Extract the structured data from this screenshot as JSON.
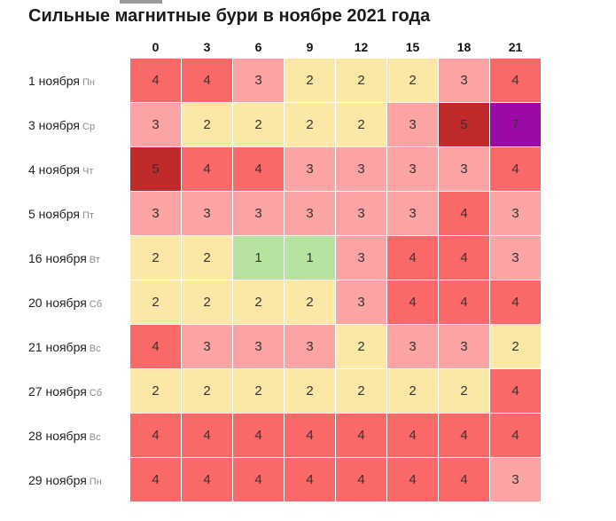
{
  "title": "Сильные магнитные бури в ноябре 2021 года",
  "level_colors": {
    "1": "#b6e3a0",
    "2": "#fbe8a6",
    "3": "#fca3a3",
    "4": "#fb6868",
    "5": "#c02a2a",
    "7": "#9b0aa6"
  },
  "hours": [
    "0",
    "3",
    "6",
    "9",
    "12",
    "15",
    "18",
    "21"
  ],
  "rows": [
    {
      "date": "1 ноября",
      "weekday": "Пн",
      "values": [
        4,
        4,
        3,
        2,
        2,
        2,
        3,
        4
      ]
    },
    {
      "date": "3 ноября",
      "weekday": "Ср",
      "values": [
        3,
        2,
        2,
        2,
        2,
        3,
        5,
        7
      ]
    },
    {
      "date": "4 ноября",
      "weekday": "Чт",
      "values": [
        5,
        4,
        4,
        3,
        3,
        3,
        3,
        4
      ]
    },
    {
      "date": "5 ноября",
      "weekday": "Пт",
      "values": [
        3,
        3,
        3,
        3,
        3,
        3,
        4,
        3
      ]
    },
    {
      "date": "16 ноября",
      "weekday": "Вт",
      "values": [
        2,
        2,
        1,
        1,
        3,
        4,
        4,
        3
      ]
    },
    {
      "date": "20 ноября",
      "weekday": "Сб",
      "values": [
        2,
        2,
        2,
        2,
        3,
        4,
        4,
        4
      ]
    },
    {
      "date": "21 ноября",
      "weekday": "Вс",
      "values": [
        4,
        3,
        3,
        3,
        2,
        3,
        3,
        2
      ]
    },
    {
      "date": "27 ноября",
      "weekday": "Сб",
      "values": [
        2,
        2,
        2,
        2,
        2,
        2,
        2,
        4
      ]
    },
    {
      "date": "28 ноября",
      "weekday": "Вс",
      "values": [
        4,
        4,
        4,
        4,
        4,
        4,
        4,
        4
      ]
    },
    {
      "date": "29 ноября",
      "weekday": "Пн",
      "values": [
        4,
        4,
        4,
        4,
        4,
        4,
        4,
        3
      ]
    }
  ]
}
